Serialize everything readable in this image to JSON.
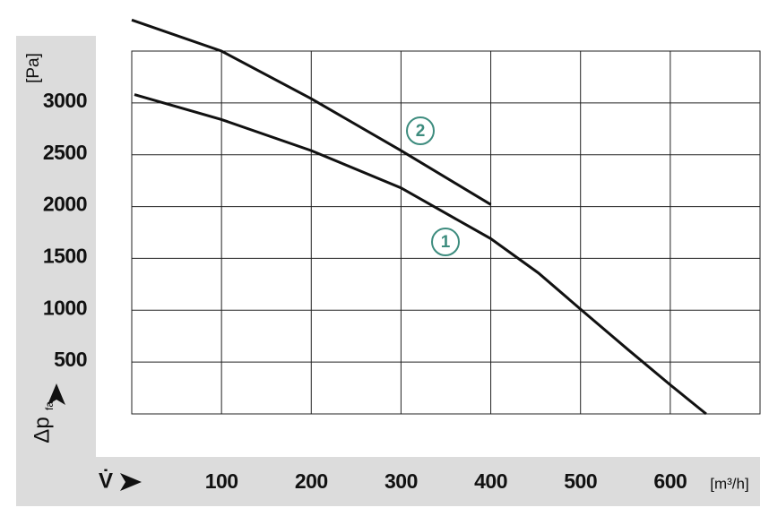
{
  "chart_data": {
    "type": "line",
    "x_label": "V̇",
    "x_unit": "[m³/h]",
    "y_label": "Δp",
    "y_label_sub": "fa",
    "y_unit": "[Pa]",
    "xlim": [
      0,
      700
    ],
    "xticks": [
      100,
      200,
      300,
      400,
      500,
      600
    ],
    "ylim": [
      0,
      3500
    ],
    "yticks": [
      500,
      1000,
      1500,
      2000,
      2500,
      3000
    ],
    "grid": true,
    "series": [
      {
        "name": "1",
        "color": "#111111",
        "x": [
          3,
          100,
          200,
          300,
          353,
          400,
          453,
          500,
          553,
          600,
          640
        ],
        "values": [
          3080,
          2840,
          2540,
          2180,
          1920,
          1690,
          1360,
          1010,
          620,
          280,
          0
        ]
      },
      {
        "name": "2",
        "color": "#111111",
        "x": [
          0,
          100,
          200,
          300,
          400
        ],
        "values": [
          3800,
          3500,
          3040,
          2540,
          2020
        ]
      }
    ],
    "annotation_color": "#3d8c7e"
  }
}
